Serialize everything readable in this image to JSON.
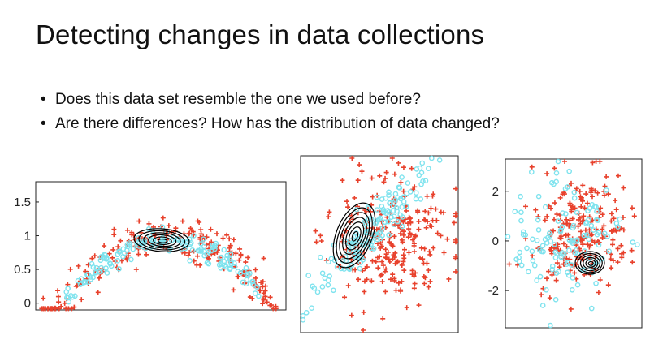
{
  "slide": {
    "title": "Detecting changes in data collections",
    "bullets": [
      "Does this data set resemble the one we used before?",
      "Are there differences? How has the distribution of data changed?"
    ]
  },
  "chart_data": [
    {
      "type": "scatter",
      "title": "",
      "y_ticks": [
        "1.5",
        "1",
        "0.5",
        "0"
      ],
      "ylim": [
        -0.1,
        1.8
      ],
      "xlim": [
        0,
        1
      ],
      "series": [
        {
          "marker": "plus",
          "color": "#e8412c",
          "cluster": "arch (wide)"
        },
        {
          "marker": "circle",
          "color": "#7fe3ee",
          "cluster": "arch (narrow)"
        }
      ],
      "contour": {
        "color": "#000000",
        "levels": 6,
        "center": [
          0.55,
          0.95
        ]
      },
      "grid": false
    },
    {
      "type": "scatter",
      "title": "",
      "y_ticks": [],
      "series": [
        {
          "marker": "plus",
          "color": "#e8412c"
        },
        {
          "marker": "circle",
          "color": "#7fe3ee"
        }
      ],
      "contour": {
        "color": "#000000",
        "levels": 7,
        "center": [
          0.38,
          0.55
        ]
      },
      "grid": false
    },
    {
      "type": "scatter",
      "title": "",
      "y_ticks": [
        "2",
        "0",
        "-2"
      ],
      "ylim": [
        -3.5,
        3.3
      ],
      "series": [
        {
          "marker": "plus",
          "color": "#e8412c"
        },
        {
          "marker": "circle",
          "color": "#7fe3ee"
        }
      ],
      "contour": {
        "color": "#000000",
        "levels": 6,
        "center": [
          0.6,
          -1.0
        ]
      },
      "grid": false
    }
  ]
}
